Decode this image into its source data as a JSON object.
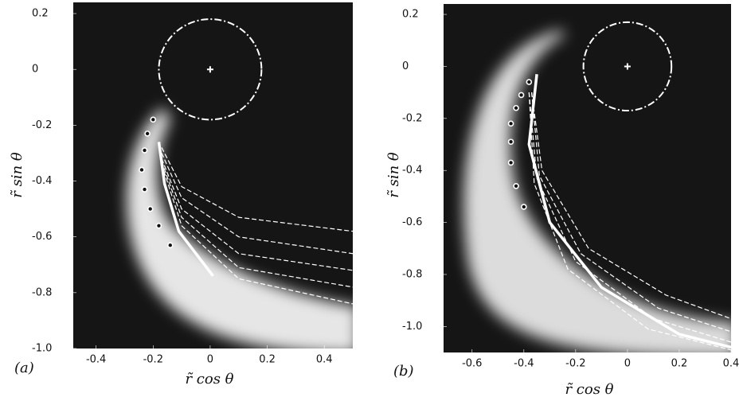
{
  "chart_data": [
    {
      "type": "image-overlay",
      "panel_label": "(a)",
      "xlabel": "r̃ cos θ",
      "ylabel": "r̃ sin θ",
      "xlim": [
        -0.48,
        0.5
      ],
      "ylim": [
        -1.0,
        0.24
      ],
      "xticks": [
        -0.4,
        -0.2,
        0,
        0.2,
        0.4
      ],
      "yticks": [
        0.2,
        0,
        -0.2,
        -0.4,
        -0.6,
        -0.8,
        {
          "value": -1,
          "label": "-1.0"
        }
      ],
      "circle": {
        "x": 0,
        "y": 0,
        "r": 0.18
      },
      "markers": {
        "x": [
          -0.2,
          -0.22,
          -0.23,
          -0.24,
          -0.23,
          -0.21,
          -0.18,
          -0.14
        ],
        "y": [
          -0.18,
          -0.23,
          -0.29,
          -0.36,
          -0.43,
          -0.5,
          -0.56,
          -0.63
        ]
      },
      "curves": [
        {
          "style": "solid",
          "x": [
            -0.18,
            -0.16,
            -0.11,
            0.01
          ],
          "y": [
            -0.26,
            -0.41,
            -0.58,
            -0.74
          ]
        },
        {
          "style": "dashed",
          "x": [
            -0.17,
            -0.1,
            0.1,
            0.5
          ],
          "y": [
            -0.28,
            -0.42,
            -0.53,
            -0.58
          ]
        },
        {
          "style": "dashed",
          "x": [
            -0.17,
            -0.1,
            0.1,
            0.5
          ],
          "y": [
            -0.3,
            -0.46,
            -0.6,
            -0.66
          ]
        },
        {
          "style": "dashed",
          "x": [
            -0.17,
            -0.1,
            0.1,
            0.5
          ],
          "y": [
            -0.32,
            -0.5,
            -0.66,
            -0.72
          ]
        },
        {
          "style": "dashed",
          "x": [
            -0.17,
            -0.1,
            0.1,
            0.5
          ],
          "y": [
            -0.33,
            -0.53,
            -0.71,
            -0.78
          ]
        },
        {
          "style": "dashed",
          "x": [
            -0.17,
            -0.1,
            0.1,
            0.5
          ],
          "y": [
            -0.34,
            -0.56,
            -0.75,
            -0.84
          ]
        }
      ]
    },
    {
      "type": "image-overlay",
      "panel_label": "(b)",
      "xlabel": "r̃ cos θ",
      "ylabel": "r̃ sin θ",
      "xlim": [
        -0.71,
        0.4
      ],
      "ylim": [
        -1.1,
        0.24
      ],
      "xticks": [
        -0.6,
        -0.4,
        -0.2,
        0,
        0.2,
        0.4
      ],
      "yticks": [
        0.2,
        0,
        -0.2,
        -0.4,
        -0.6,
        -0.8,
        {
          "value": -1,
          "label": "-1.0"
        }
      ],
      "circle": {
        "x": 0,
        "y": 0,
        "r": 0.17
      },
      "markers": {
        "x": [
          -0.38,
          -0.41,
          -0.43,
          -0.45,
          -0.45,
          -0.45,
          -0.43,
          -0.4
        ],
        "y": [
          -0.06,
          -0.11,
          -0.16,
          -0.22,
          -0.29,
          -0.37,
          -0.46,
          -0.54
        ]
      },
      "curves": [
        {
          "style": "solid",
          "x": [
            -0.35,
            -0.38,
            -0.3,
            -0.1,
            0.2,
            0.4
          ],
          "y": [
            -0.03,
            -0.3,
            -0.6,
            -0.85,
            -1.03,
            -1.08
          ]
        },
        {
          "style": "dashed",
          "x": [
            -0.37,
            -0.33,
            -0.15,
            0.15,
            0.4
          ],
          "y": [
            -0.1,
            -0.4,
            -0.7,
            -0.88,
            -0.97
          ]
        },
        {
          "style": "dashed",
          "x": [
            -0.37,
            -0.34,
            -0.18,
            0.12,
            0.4
          ],
          "y": [
            -0.1,
            -0.42,
            -0.72,
            -0.93,
            -1.02
          ]
        },
        {
          "style": "dashed",
          "x": [
            -0.38,
            -0.35,
            -0.2,
            0.1,
            0.4
          ],
          "y": [
            -0.1,
            -0.43,
            -0.75,
            -0.97,
            -1.06
          ]
        },
        {
          "style": "dashed",
          "x": [
            -0.38,
            -0.36,
            -0.23,
            0.08,
            0.4
          ],
          "y": [
            -0.1,
            -0.45,
            -0.78,
            -1.01,
            -1.09
          ]
        }
      ]
    }
  ]
}
